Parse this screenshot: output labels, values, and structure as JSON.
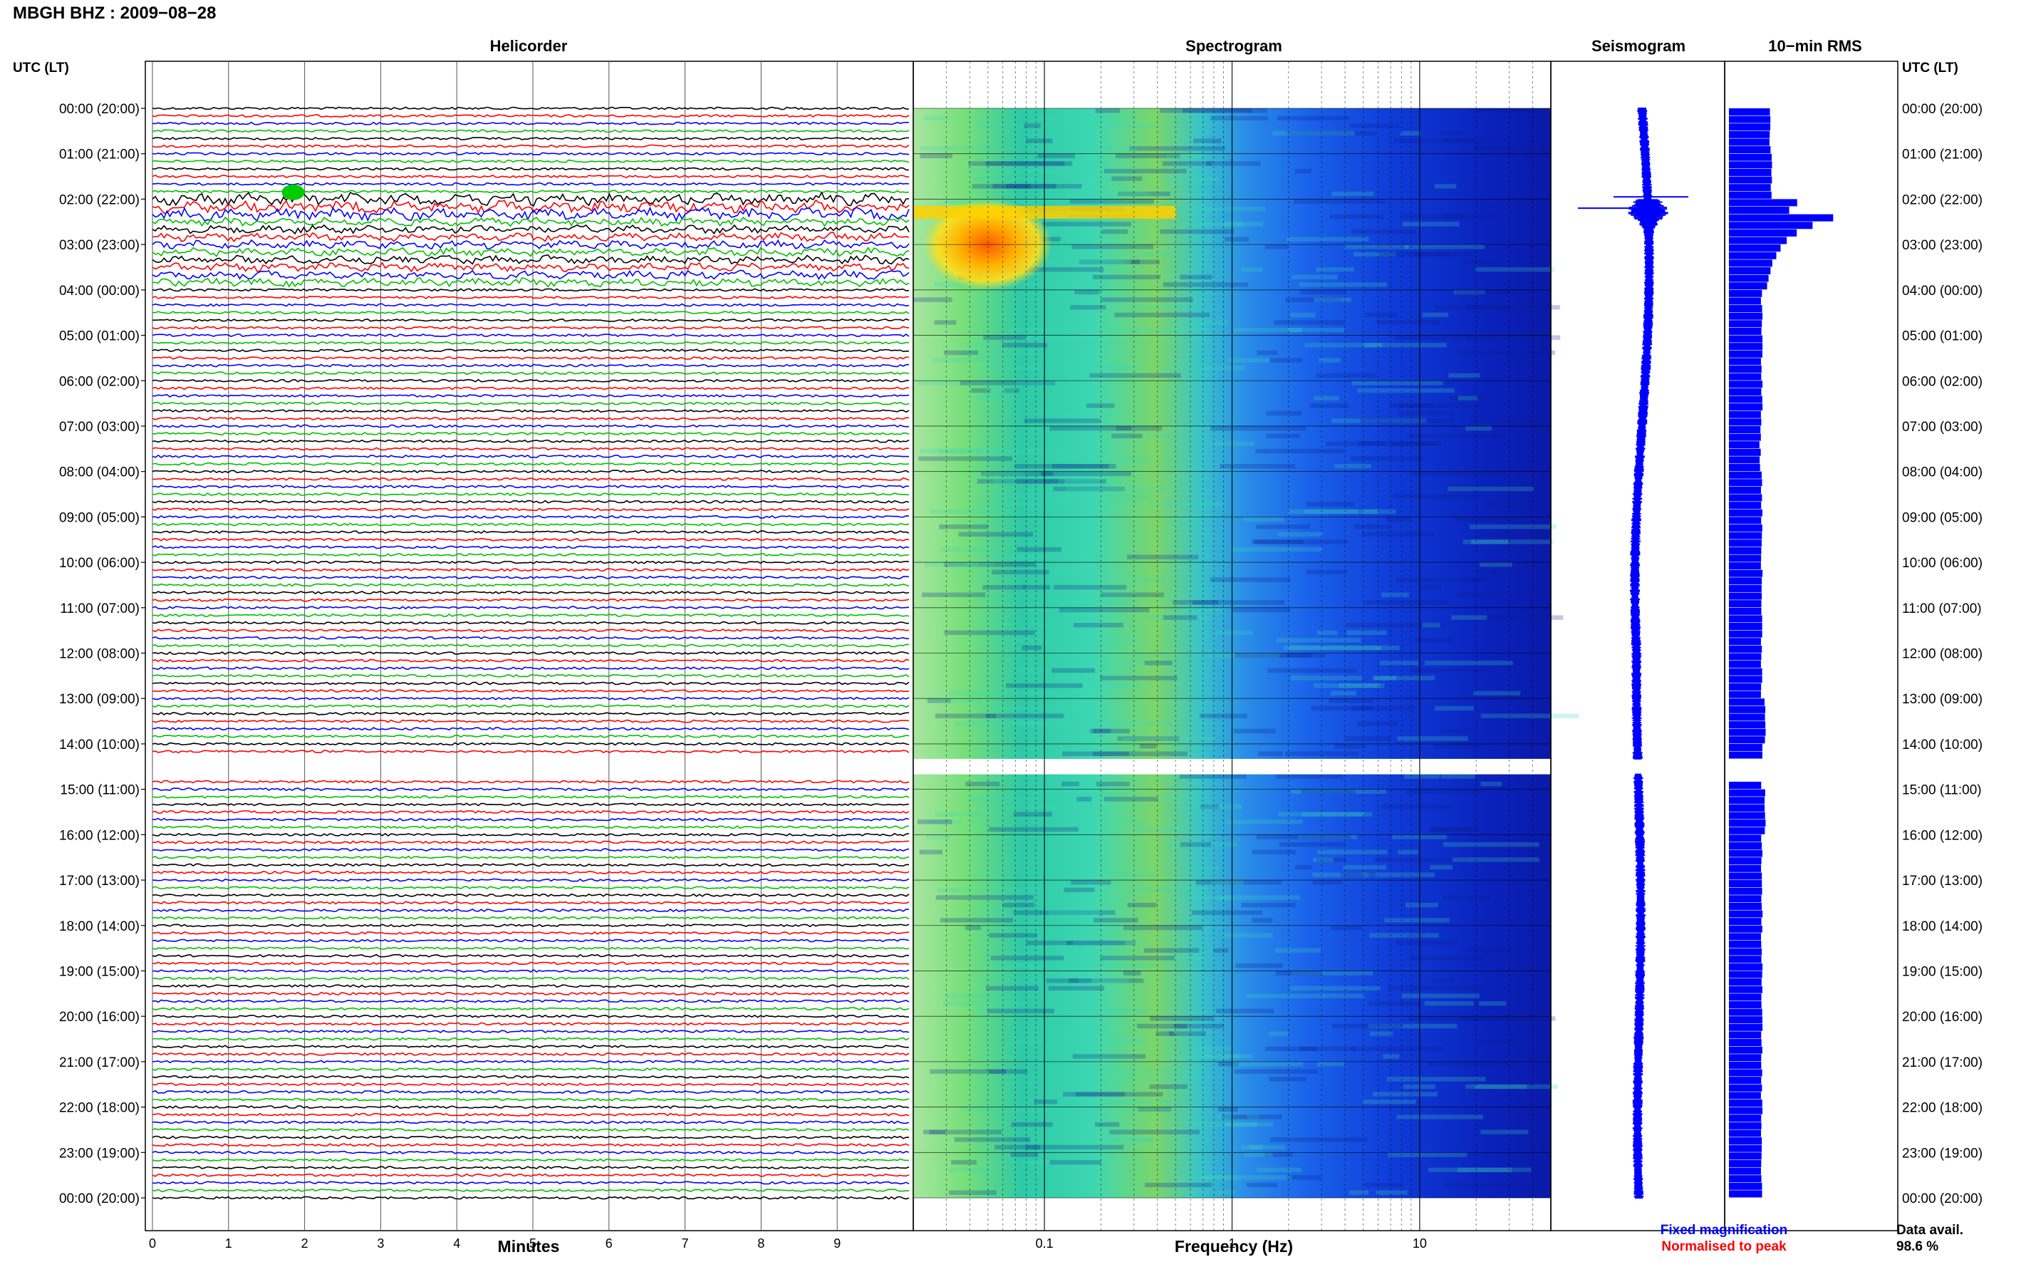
{
  "header": {
    "station_title": "MBGH BHZ : 2009−08−28"
  },
  "panels": {
    "helicorder": "Helicorder",
    "spectrogram": "Spectrogram",
    "seismogram": "Seismogram",
    "rms": "10−min RMS"
  },
  "axes": {
    "left_time_header": "UTC (LT)",
    "right_time_header": "UTC (LT)",
    "helicorder_xlabel": "Minutes",
    "spectrogram_xlabel": "Frequency (Hz)"
  },
  "legend": {
    "fixed": "Fixed magnification",
    "normalised": "Normalised to peak",
    "fixed_color": "#0000ff",
    "normalised_color": "#ff0000"
  },
  "data_availability": {
    "label": "Data avail.",
    "value": "98.6 %"
  },
  "colors": {
    "trace_cycle": [
      "#000000",
      "#ff0000",
      "#0000ff",
      "#00c000"
    ],
    "seismogram": "#0000ff",
    "rms_bars": "#0000ff",
    "event_green": "#00cc00"
  },
  "chart_data": [
    {
      "type": "line",
      "title": "Helicorder",
      "xlabel": "Minutes",
      "x_ticks": [
        "0",
        "1",
        "2",
        "3",
        "4",
        "5",
        "6",
        "7",
        "8",
        "9"
      ],
      "xlim": [
        0,
        10
      ],
      "time_labels_left": [
        "00:00 (20:00)",
        "01:00 (21:00)",
        "02:00 (22:00)",
        "03:00 (23:00)",
        "04:00 (00:00)",
        "05:00 (01:00)",
        "06:00 (02:00)",
        "07:00 (03:00)",
        "08:00 (04:00)",
        "09:00 (05:00)",
        "10:00 (06:00)",
        "11:00 (07:00)",
        "12:00 (08:00)",
        "13:00 (09:00)",
        "14:00 (10:00)",
        "15:00 (11:00)",
        "16:00 (12:00)",
        "17:00 (13:00)",
        "18:00 (14:00)",
        "19:00 (15:00)",
        "20:00 (16:00)",
        "21:00 (17:00)",
        "22:00 (18:00)",
        "23:00 (19:00)",
        "00:00 (20:00)"
      ],
      "lines_per_hour": 6,
      "line_minutes": 10,
      "data_gap_utc_hours": [
        14.33,
        14.67
      ],
      "event_utc_hours": [
        2.0,
        4.0
      ]
    },
    {
      "type": "heatmap",
      "title": "Spectrogram",
      "xlabel": "Frequency (Hz)",
      "x_scale": "log",
      "x_ticks": [
        "0.1",
        "1",
        "10"
      ],
      "xlim": [
        0.02,
        50
      ],
      "energy_band_hz": [
        0.1,
        0.8
      ],
      "event_utc_hours": [
        2.0,
        4.0
      ],
      "event_freq_hz": [
        0.02,
        0.5
      ],
      "data_gap_utc_hours": [
        14.33,
        14.67
      ]
    },
    {
      "type": "line",
      "title": "Seismogram",
      "legend": [
        "Fixed magnification",
        "Normalised to peak"
      ],
      "event_utc_hours": [
        2.0,
        3.0
      ],
      "data_gap_utc_hours": [
        14.33,
        14.67
      ]
    },
    {
      "type": "bar",
      "title": "10−min RMS",
      "bins_per_hour": 6,
      "relative_rms_by_hour": [
        0.25,
        0.26,
        0.55,
        0.45,
        0.2,
        0.2,
        0.2,
        0.19,
        0.2,
        0.2,
        0.2,
        0.2,
        0.2,
        0.22,
        0.2,
        0.22,
        0.2,
        0.2,
        0.2,
        0.2,
        0.2,
        0.2,
        0.2,
        0.2
      ],
      "event_peak_utc_hour": 2.2,
      "event_peak_relative": 0.78,
      "data_gap_utc_hours": [
        14.33,
        14.67
      ]
    }
  ]
}
